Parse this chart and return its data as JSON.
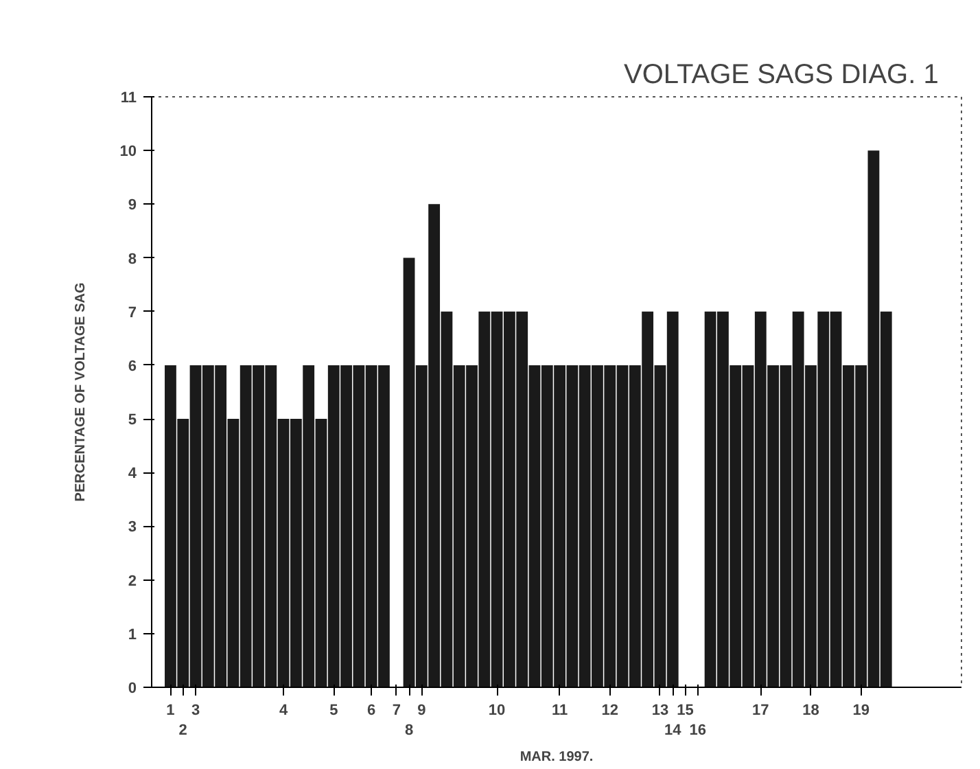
{
  "chart_data": {
    "type": "bar",
    "title": "VOLTAGE SAGS    DIAG. 1",
    "xlabel": "MAR. 1997.",
    "ylabel": "PERCENTAGE OF VOLTAGE SAG",
    "categories": [
      "1",
      "2",
      "3",
      null,
      null,
      null,
      null,
      null,
      null,
      "4",
      null,
      null,
      null,
      "5",
      null,
      null,
      "6",
      null,
      "7",
      "8",
      "9",
      null,
      null,
      null,
      null,
      null,
      "10",
      null,
      null,
      null,
      null,
      "11",
      null,
      null,
      null,
      "12",
      null,
      null,
      null,
      "13",
      "14",
      "15",
      "16",
      null,
      null,
      null,
      null,
      "17",
      null,
      null,
      null,
      "18",
      null,
      null,
      null,
      "19",
      null,
      null
    ],
    "values": [
      6,
      5,
      6,
      6,
      6,
      5,
      6,
      6,
      6,
      5,
      5,
      6,
      5,
      6,
      6,
      6,
      6,
      6,
      null,
      8,
      6,
      9,
      7,
      6,
      6,
      7,
      7,
      7,
      7,
      6,
      6,
      6,
      6,
      6,
      6,
      6,
      6,
      6,
      7,
      6,
      7,
      null,
      null,
      7,
      7,
      6,
      6,
      7,
      6,
      6,
      7,
      6,
      7,
      7,
      6,
      6,
      10,
      7
    ],
    "color": "#1a1a1a",
    "ylim": [
      0,
      11
    ],
    "yticks": [
      0,
      1,
      2,
      3,
      4,
      5,
      6,
      7,
      8,
      9,
      10,
      11
    ]
  }
}
